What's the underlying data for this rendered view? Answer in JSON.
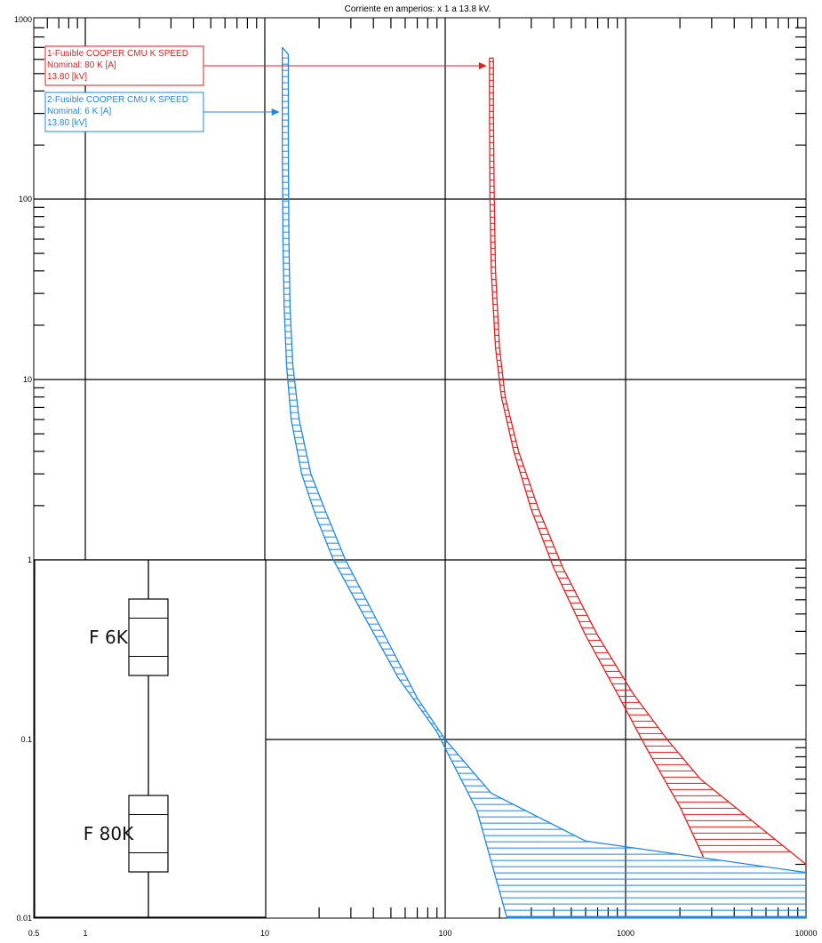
{
  "chart_data": {
    "type": "line",
    "title": "Corriente en amperios: x 1 a 13.8 kV.",
    "x_scale": "log",
    "y_scale": "log",
    "xlim": [
      0.5,
      10000
    ],
    "ylim": [
      0.01,
      1000
    ],
    "x_tick_labels": [
      "0.5",
      "1",
      "10",
      "100",
      "1000",
      "10000"
    ],
    "y_tick_labels": [
      "0.01",
      "0.1",
      "1",
      "10",
      "100",
      "1000"
    ],
    "grid": true,
    "series": [
      {
        "name": "1-Fusible COOPER CMU K SPEED",
        "lines": [
          "1-Fusible COOPER CMU K SPEED",
          "Nominal: 80 K [A]",
          "13.80 [kV]"
        ],
        "color": "#e81e1e",
        "min_curve": {
          "x": [
            176,
            176,
            177,
            180,
            190,
            205,
            240,
            300,
            400,
            600,
            900,
            1300,
            2000,
            2700
          ],
          "y": [
            610,
            300,
            100,
            40,
            15,
            8,
            4,
            1.9,
            0.9,
            0.38,
            0.18,
            0.09,
            0.042,
            0.022
          ]
        },
        "max_curve": {
          "x": [
            185,
            185,
            187,
            190,
            200,
            215,
            255,
            330,
            450,
            700,
            1100,
            1700,
            2600,
            10000
          ],
          "y": [
            610,
            300,
            100,
            40,
            15,
            8,
            4,
            1.9,
            0.9,
            0.38,
            0.18,
            0.1,
            0.06,
            0.02
          ]
        }
      },
      {
        "name": "2-Fusible COOPER CMU K SPEED",
        "lines": [
          "2-Fusible COOPER CMU K SPEED",
          "Nominal: 6 K [A]",
          "13.80 [kV]"
        ],
        "color": "#1e88e5",
        "min_curve": {
          "x": [
            12.5,
            12.5,
            12.6,
            12.8,
            13.2,
            14,
            16,
            19,
            24,
            35,
            55,
            90,
            150,
            220
          ],
          "y": [
            700,
            200,
            60,
            25,
            12,
            6,
            3,
            1.8,
            1,
            0.5,
            0.22,
            0.11,
            0.04,
            0.01
          ]
        },
        "max_curve": {
          "x": [
            13.5,
            13.5,
            13.6,
            13.8,
            14.3,
            15.5,
            18,
            22,
            28,
            45,
            70,
            100,
            180,
            600,
            10000
          ],
          "y": [
            640,
            200,
            60,
            25,
            12,
            6,
            3,
            1.8,
            1,
            0.4,
            0.17,
            0.1,
            0.05,
            0.027,
            0.018
          ]
        }
      }
    ],
    "annotations": [
      {
        "series": 0,
        "arrow_to": {
          "x": 176,
          "y": 600
        }
      },
      {
        "series": 1,
        "arrow_to": {
          "x": 12.5,
          "y": 300
        }
      }
    ],
    "inset": {
      "labels": [
        "F 6K",
        "F 80K"
      ]
    }
  }
}
